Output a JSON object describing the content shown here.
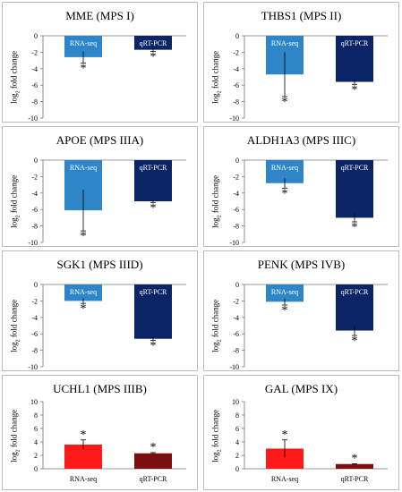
{
  "colors": {
    "rnaseq_down": "#2e86c9",
    "qrtpcr_down": "#0b2466",
    "rnaseq_up": "#ff1a1a",
    "qrtpcr_up": "#7a0f0f"
  },
  "ylabel_main": "log",
  "ylabel_sub": "2",
  "ylabel_rest": " fold change",
  "chart_data": [
    {
      "type": "bar",
      "title": "MME (MPS I)",
      "categories": [
        "RNA-seq",
        "qRT-PCR"
      ],
      "values": [
        -2.6,
        -1.7
      ],
      "errors": [
        0.7,
        0.2
      ],
      "significance": [
        "*",
        "*"
      ],
      "ylim": [
        -10,
        0
      ],
      "yticks": [
        0,
        -2,
        -4,
        -6,
        -8,
        -10
      ],
      "labels_inside": true,
      "colors": [
        "#2e86c9",
        "#0b2466"
      ]
    },
    {
      "type": "bar",
      "title": "THBS1 (MPS II)",
      "categories": [
        "RNA-seq",
        "qRT-PCR"
      ],
      "values": [
        -4.7,
        -5.6
      ],
      "errors": [
        2.7,
        0.3
      ],
      "significance": [
        "*",
        "*"
      ],
      "ylim": [
        -10,
        0
      ],
      "yticks": [
        0,
        -2,
        -4,
        -6,
        -8,
        -10
      ],
      "labels_inside": true,
      "colors": [
        "#2e86c9",
        "#0b2466"
      ]
    },
    {
      "type": "bar",
      "title": "APOE (MPS IIIA)",
      "categories": [
        "RNA-seq",
        "qRT-PCR"
      ],
      "values": [
        -6.1,
        -5.0
      ],
      "errors": [
        2.5,
        0.15
      ],
      "significance": [
        "*",
        "*"
      ],
      "ylim": [
        -10,
        0
      ],
      "yticks": [
        0,
        -2,
        -4,
        -6,
        -8,
        -10
      ],
      "labels_inside": true,
      "colors": [
        "#2e86c9",
        "#0b2466"
      ]
    },
    {
      "type": "bar",
      "title": "ALDH1A3  (MPS IIIC)",
      "categories": [
        "RNA-seq",
        "qRT-PCR"
      ],
      "values": [
        -2.8,
        -7.0
      ],
      "errors": [
        0.6,
        0.5
      ],
      "significance": [
        "*",
        "*"
      ],
      "ylim": [
        -10,
        0
      ],
      "yticks": [
        0,
        -2,
        -4,
        -6,
        -8,
        -10
      ],
      "labels_inside": true,
      "colors": [
        "#2e86c9",
        "#0b2466"
      ]
    },
    {
      "type": "bar",
      "title": "SGK1 (MPS IIID)",
      "categories": [
        "RNA-seq",
        "qRT-PCR"
      ],
      "values": [
        -2.0,
        -6.6
      ],
      "errors": [
        0.3,
        0.2
      ],
      "significance": [
        "*",
        "*"
      ],
      "ylim": [
        -10,
        0
      ],
      "yticks": [
        0,
        -2,
        -4,
        -6,
        -8,
        -10
      ],
      "labels_inside": true,
      "colors": [
        "#2e86c9",
        "#0b2466"
      ]
    },
    {
      "type": "bar",
      "title": "PENK (MPS IVB)",
      "categories": [
        "RNA-seq",
        "qRT-PCR"
      ],
      "values": [
        -2.1,
        -5.6
      ],
      "errors": [
        0.4,
        0.6
      ],
      "significance": [
        "*",
        "*"
      ],
      "ylim": [
        -10,
        0
      ],
      "yticks": [
        0,
        -2,
        -4,
        -6,
        -8,
        -10
      ],
      "labels_inside": true,
      "colors": [
        "#2e86c9",
        "#0b2466"
      ]
    },
    {
      "type": "bar",
      "title": "UCHL1 (MPS IIIB)",
      "categories": [
        "RNA-seq",
        "qRT-PCR"
      ],
      "values": [
        3.6,
        2.3
      ],
      "errors": [
        0.7,
        0.1
      ],
      "significance": [
        "*",
        "*"
      ],
      "ylim": [
        0,
        10
      ],
      "yticks": [
        10,
        8,
        6,
        4,
        2,
        0
      ],
      "labels_inside": false,
      "colors": [
        "#ff1a1a",
        "#7a0f0f"
      ]
    },
    {
      "type": "bar",
      "title": "GAL (MPS IX)",
      "categories": [
        "RNA-seq",
        "qRT-PCR"
      ],
      "values": [
        3.0,
        0.7
      ],
      "errors": [
        1.3,
        0.05
      ],
      "significance": [
        "*",
        "*"
      ],
      "ylim": [
        0,
        10
      ],
      "yticks": [
        10,
        8,
        6,
        4,
        2,
        0
      ],
      "labels_inside": false,
      "colors": [
        "#ff1a1a",
        "#7a0f0f"
      ]
    }
  ]
}
